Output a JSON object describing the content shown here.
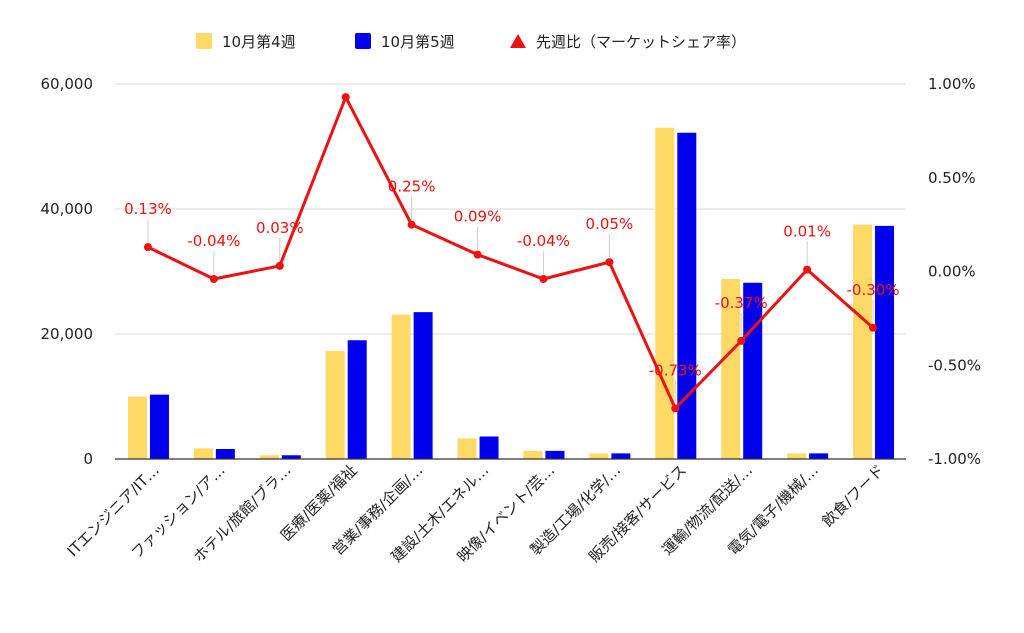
{
  "chart_data": {
    "type": "bar",
    "categories": [
      "ITエンジニア/IT…",
      "ファッション/ア…",
      "ホテル/旅館/ブラ…",
      "医療/医薬/福祉",
      "営業/事務/企画/…",
      "建設/土木/エネル…",
      "映像/イベント/芸…",
      "製造/工場/化学/…",
      "販売/接客/サービス",
      "運輸/物流/配送/…",
      "電気/電子/機械/…",
      "飲食/フード"
    ],
    "series": [
      {
        "name": "10月第4週",
        "type": "bar",
        "axis": "left",
        "color": "#FFD966",
        "values": [
          10000,
          1700,
          600,
          17300,
          23100,
          3300,
          1300,
          900,
          53000,
          28800,
          900,
          37500
        ]
      },
      {
        "name": "10月第5週",
        "type": "bar",
        "axis": "left",
        "color": "#0000EE",
        "values": [
          10300,
          1600,
          600,
          19000,
          23500,
          3600,
          1300,
          900,
          52200,
          28200,
          900,
          37300
        ]
      },
      {
        "name": "先週比（マーケットシェア率）",
        "type": "line",
        "axis": "right",
        "color": "#EE1111",
        "marker": "triangle",
        "values": [
          0.13,
          -0.04,
          0.03,
          0.93,
          0.25,
          0.09,
          -0.04,
          0.05,
          -0.73,
          -0.37,
          0.01,
          -0.3
        ],
        "labels": [
          "0.13%",
          "-0.04%",
          "0.03%",
          "",
          "0.25%",
          "0.09%",
          "-0.04%",
          "0.05%",
          "-0.73%",
          "-0.37%",
          "0.01%",
          "-0.30%"
        ]
      }
    ],
    "left_axis": {
      "ylim": [
        0,
        60000
      ],
      "ticks": [
        0,
        20000,
        40000,
        60000
      ],
      "tick_labels": [
        "0",
        "20,000",
        "40,000",
        "60,000"
      ]
    },
    "right_axis": {
      "ylim": [
        -1.0,
        1.0
      ],
      "ticks": [
        -1.0,
        -0.5,
        0.0,
        0.5,
        1.0
      ],
      "tick_labels": [
        "-1.00%",
        "-0.50%",
        "0.00%",
        "0.50%",
        "1.00%"
      ]
    },
    "legend_position": "top-center",
    "grid": "horizontal"
  }
}
